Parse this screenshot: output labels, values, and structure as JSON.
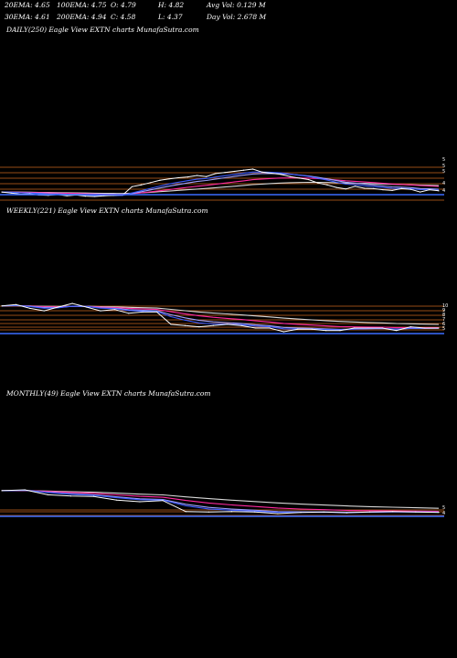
{
  "header": {
    "ema20": "20EMA: 4.65",
    "ema30": "30EMA: 4.61",
    "ema100": "100EMA: 4.75",
    "ema200": "200EMA: 4.94",
    "open": "O: 4.79",
    "close": "C: 4.58",
    "high": "H: 4.82",
    "low": "L: 4.37",
    "avg_vol": "Avg Vol: 0.129 M",
    "day_vol": "Day Vol: 2.678 M"
  },
  "colors": {
    "background": "#000000",
    "price": "#ffffff",
    "ema20": "#3b5bff",
    "ema30": "#a0a0ff",
    "ema100": "#ff2aa0",
    "ema200": "#d8d8d8",
    "level_lines": "#c8641e",
    "volume": "#3a6cff"
  },
  "chart_data": [
    {
      "type": "line",
      "title": "DAILY(250) Eagle  View  EXTN  charts MunafaSutra.com",
      "series": [
        {
          "name": "",
          "values": [
            4.55,
            4.52,
            4.49,
            4.5,
            4.47,
            4.46,
            4.48,
            4.45,
            4.47,
            4.44,
            4.43,
            4.45,
            4.46,
            4.47,
            4.69,
            4.74,
            4.8,
            4.86,
            4.9,
            4.93,
            4.95,
            4.99,
            4.96,
            5.04,
            5.07,
            5.1,
            5.13,
            5.16,
            5.08,
            5.05,
            5.02,
            4.96,
            4.92,
            4.88,
            4.79,
            4.74,
            4.67,
            4.63,
            4.7,
            4.65,
            4.64,
            4.61,
            4.59,
            4.64,
            4.62,
            4.55,
            4.61,
            4.58
          ]
        }
      ],
      "level_labels": [
        "5",
        "5",
        "5",
        "4",
        "4"
      ]
    },
    {
      "type": "line",
      "title": "WEEKLY(221) Eagle  View  EXTN  charts MunafaSutra.com",
      "series": [
        {
          "name": "",
          "values": [
            6.4,
            6.5,
            6.2,
            6.0,
            6.3,
            6.6,
            6.3,
            6.0,
            6.1,
            5.8,
            5.9,
            5.9,
            4.9,
            4.8,
            4.7,
            4.8,
            4.9,
            4.8,
            4.6,
            4.6,
            4.3,
            4.5,
            4.5,
            4.4,
            4.4,
            4.6,
            4.6,
            4.6,
            4.4,
            4.7,
            4.6,
            4.6
          ]
        }
      ],
      "level_labels": [
        "10",
        "9",
        "8",
        "7",
        "6",
        "5"
      ]
    },
    {
      "type": "line",
      "title": "MONTHLY(49) Eagle  View  EXTN  charts MunafaSutra.com",
      "series": [
        {
          "name": "",
          "values": [
            9.8,
            10.0,
            8.8,
            8.5,
            8.4,
            7.5,
            7.1,
            7.4,
            4.7,
            4.6,
            4.7,
            4.6,
            4.2,
            4.5,
            4.6,
            4.4,
            4.6,
            4.7,
            4.6,
            4.5
          ]
        }
      ],
      "level_labels": [
        "5",
        "4"
      ]
    }
  ]
}
